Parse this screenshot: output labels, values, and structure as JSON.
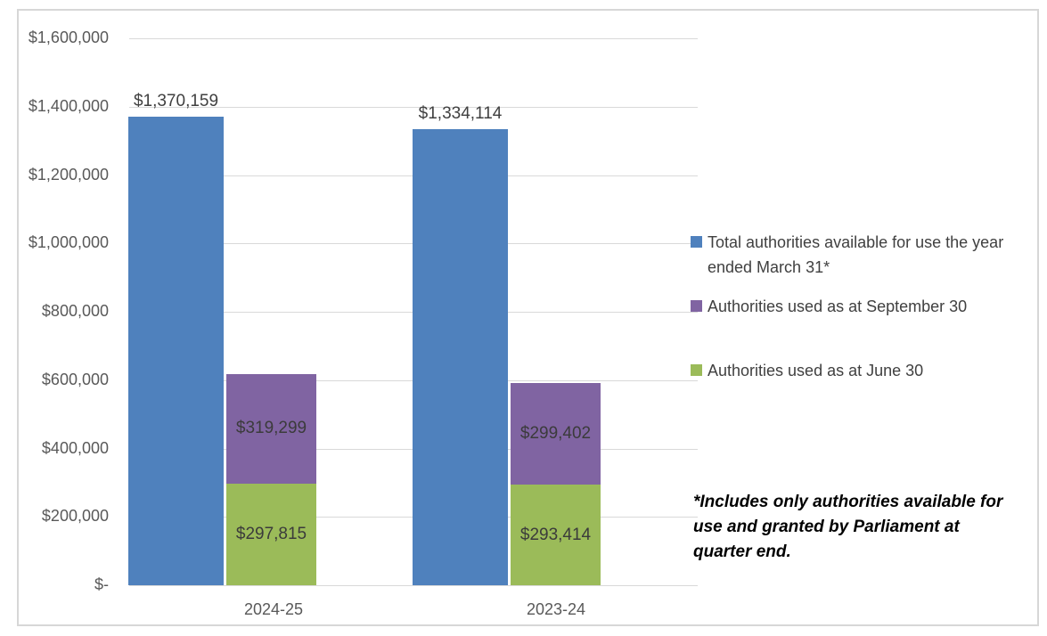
{
  "chart_data": {
    "type": "bar",
    "subtype": "grouped-with-stacked",
    "title": "",
    "categories": [
      "2024-25",
      "2023-24"
    ],
    "series": [
      {
        "name": "Total authorities available for use the year ended March 31*",
        "role": "single",
        "color": "#4f81bd",
        "values": [
          1370159,
          1334114
        ],
        "labels": [
          "$1,370,159",
          "$1,334,114"
        ]
      },
      {
        "name": "Authorities used as at September 30",
        "role": "stacked-top",
        "color": "#8064a2",
        "values": [
          319299,
          299402
        ],
        "labels": [
          "$319,299",
          "$299,402"
        ]
      },
      {
        "name": "Authorities used as at June 30",
        "role": "stacked-bottom",
        "color": "#9bbb59",
        "values": [
          297815,
          293414
        ],
        "labels": [
          "$297,815",
          "$293,414"
        ]
      }
    ],
    "y_axis": {
      "min": 0,
      "max": 1600000,
      "step": 200000,
      "tick_labels": [
        "$-",
        "$200,000",
        "$400,000",
        "$600,000",
        "$800,000",
        "$1,000,000",
        "$1,200,000",
        "$1,400,000",
        "$1,600,000"
      ]
    },
    "grid": true,
    "legend_position": "right",
    "footnote": "*Includes only authorities available for use and granted by Parliament at quarter end.",
    "colors": {
      "axis_text": "#595959",
      "data_label_text": "#404040",
      "gridline": "#d9d9d9",
      "frame_border": "#d7d7d7",
      "background": "#ffffff"
    }
  }
}
